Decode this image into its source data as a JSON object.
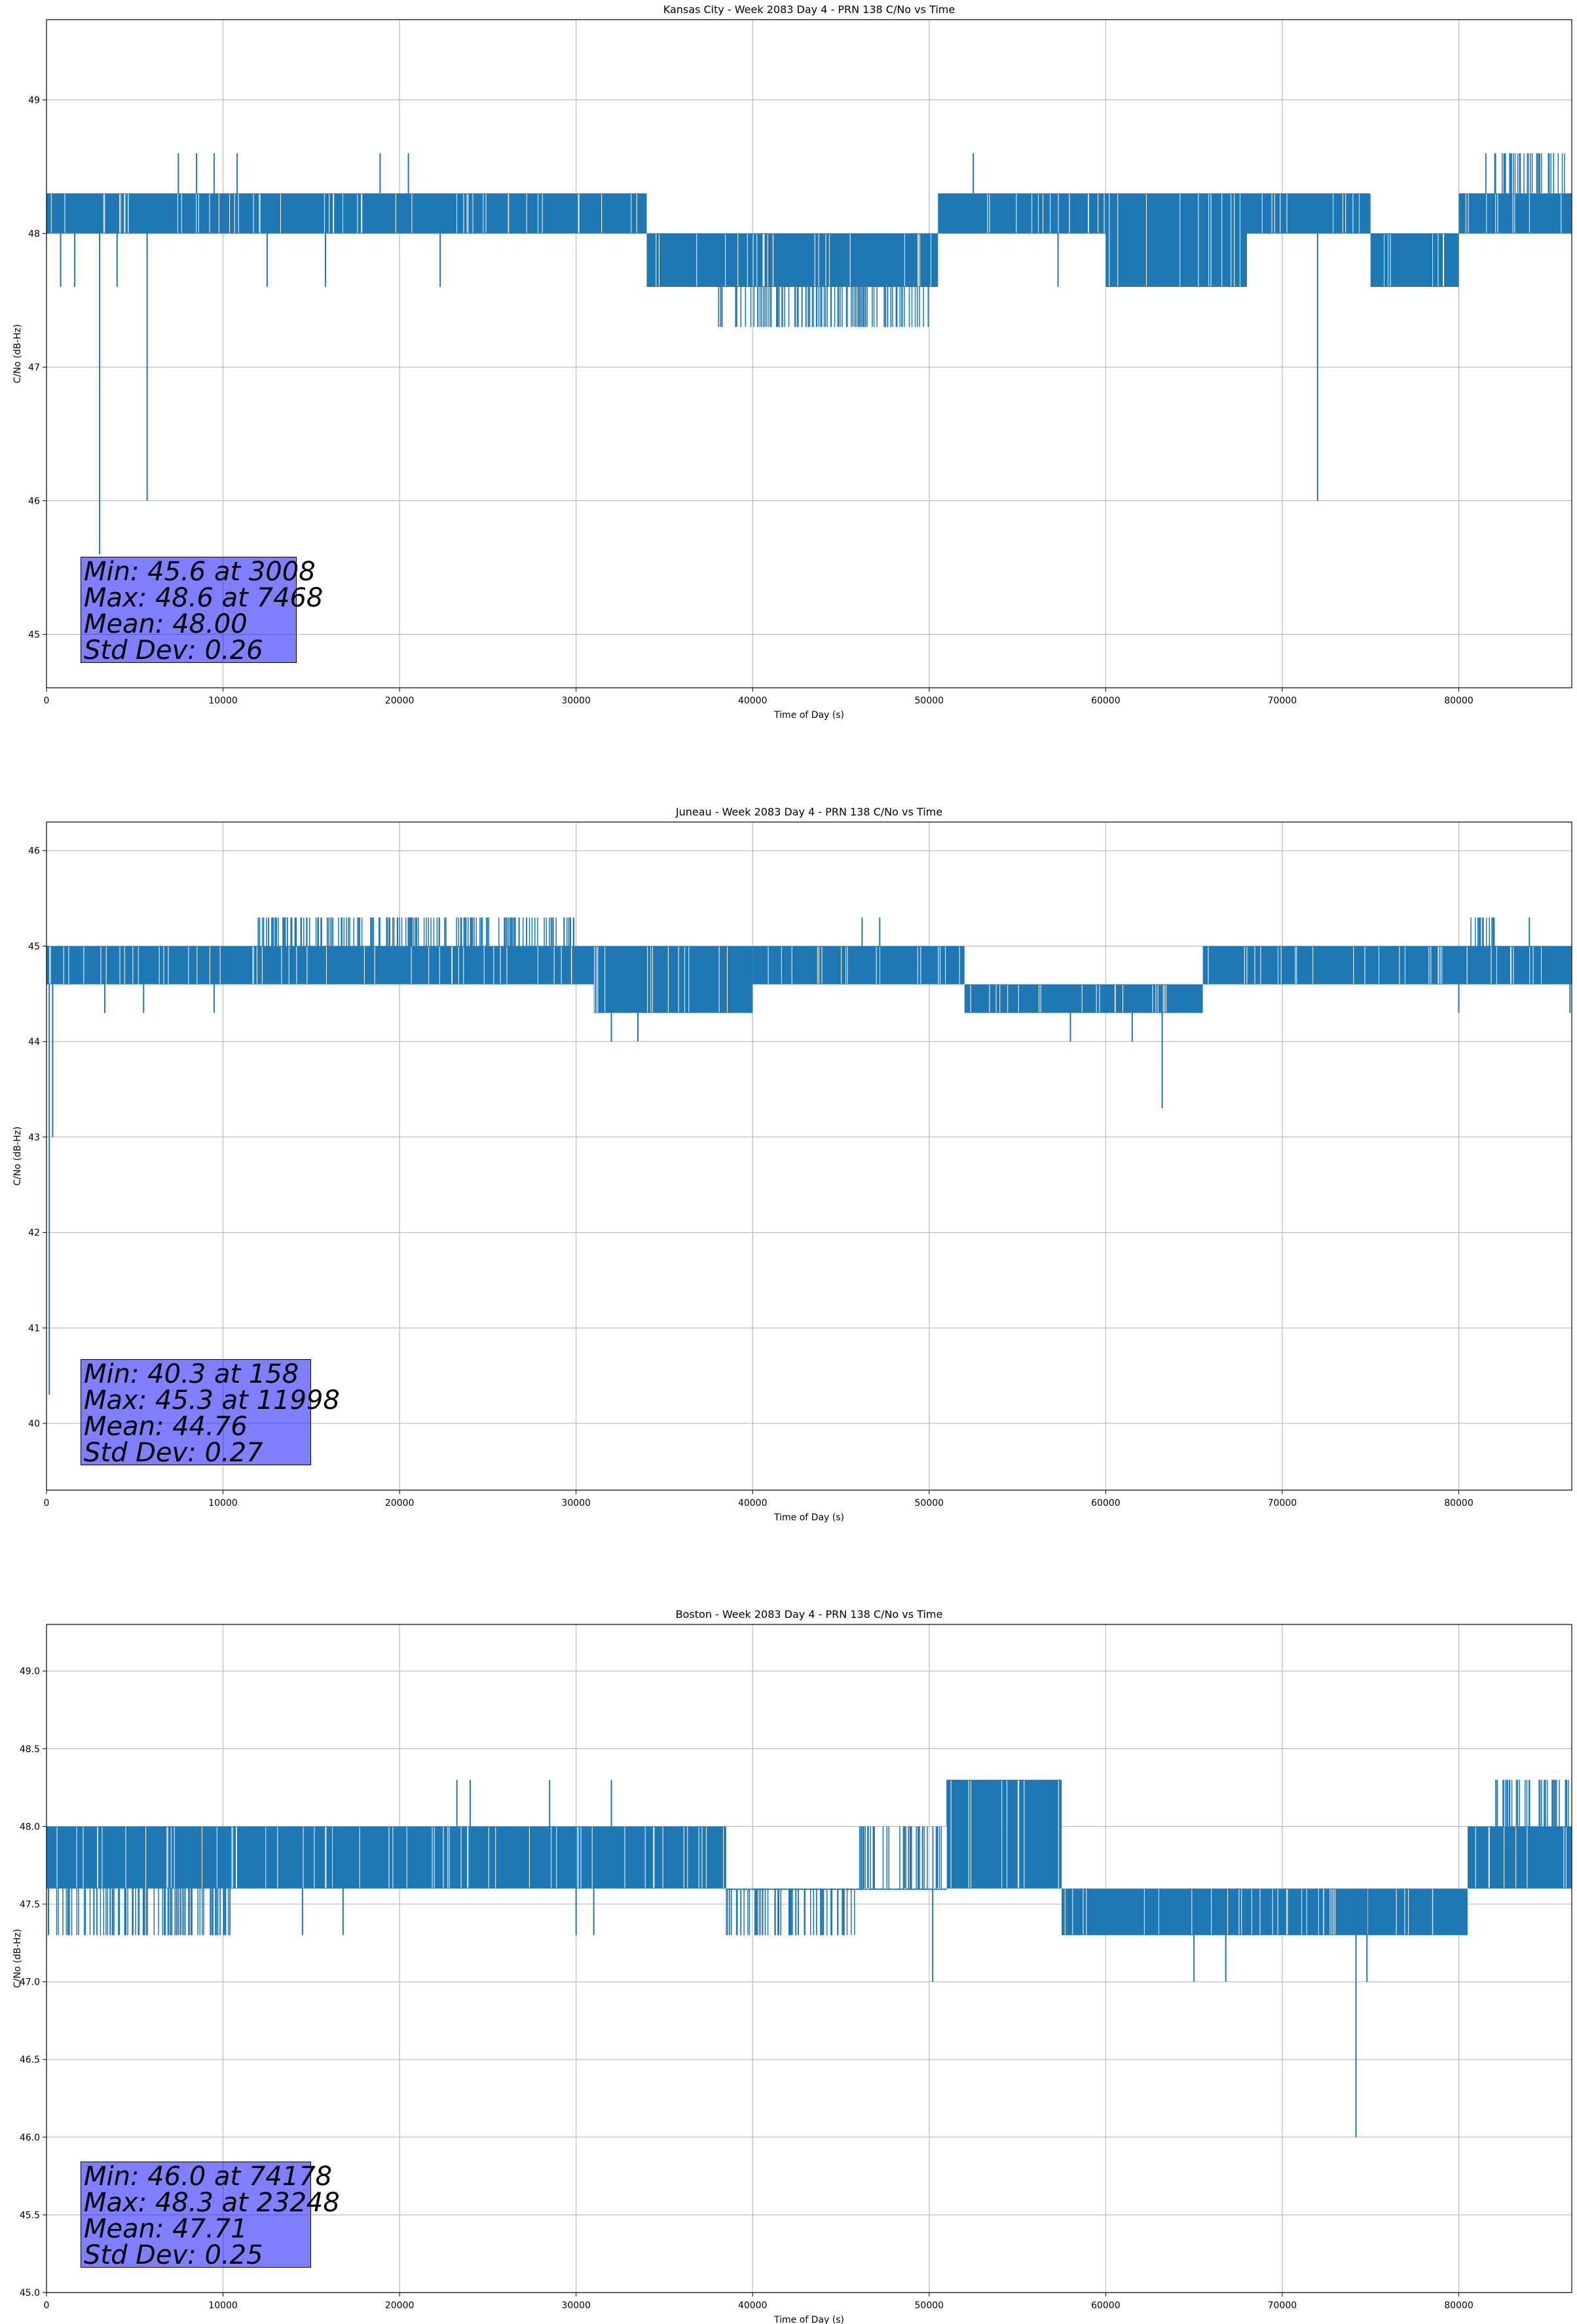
{
  "chart_data": [
    {
      "type": "line",
      "title": "Kansas City - Week 2083 Day 4 - PRN 138 C/No vs Time",
      "xlabel": "Time of Day (s)",
      "ylabel": "C/No (dB-Hz)",
      "xlim": [
        0,
        86400
      ],
      "ylim": [
        44.6,
        49.6
      ],
      "xticks": [
        0,
        10000,
        20000,
        30000,
        40000,
        50000,
        60000,
        70000,
        80000
      ],
      "xtick_labels": [
        "0",
        "10000",
        "20000",
        "30000",
        "40000",
        "50000",
        "60000",
        "70000",
        "80000"
      ],
      "yticks": [
        45,
        46,
        47,
        48,
        49
      ],
      "ytick_labels": [
        "45",
        "46",
        "47",
        "48",
        "49"
      ],
      "grid": true,
      "line_color": "#1f77b4",
      "bands": [
        {
          "x": [
            0,
            34000
          ],
          "low": 48.0,
          "high": 48.3
        },
        {
          "x": [
            34000,
            50500
          ],
          "low": 47.6,
          "high": 48.0
        },
        {
          "x": [
            50500,
            60000
          ],
          "low": 48.0,
          "high": 48.3
        },
        {
          "x": [
            60000,
            68000
          ],
          "low": 47.6,
          "high": 48.3
        },
        {
          "x": [
            68000,
            75000
          ],
          "low": 48.0,
          "high": 48.3
        },
        {
          "x": [
            75000,
            80000
          ],
          "low": 47.6,
          "high": 48.0
        },
        {
          "x": [
            80000,
            86400
          ],
          "low": 48.0,
          "high": 48.3
        }
      ],
      "extra_bands": [
        {
          "x": [
            38000,
            50000
          ],
          "low": 47.3,
          "high": 47.6
        },
        {
          "x": [
            81500,
            86000
          ],
          "low": 48.3,
          "high": 48.6
        }
      ],
      "spikes": [
        {
          "x": 3008,
          "y": 45.6
        },
        {
          "x": 5700,
          "y": 46.0
        },
        {
          "x": 72000,
          "y": 46.0
        },
        {
          "x": 7468,
          "y": 48.6
        },
        {
          "x": 8500,
          "y": 48.6
        },
        {
          "x": 9500,
          "y": 48.6
        },
        {
          "x": 10800,
          "y": 48.6
        },
        {
          "x": 18900,
          "y": 48.6
        },
        {
          "x": 20500,
          "y": 48.6
        },
        {
          "x": 52500,
          "y": 48.6
        },
        {
          "x": 800,
          "y": 47.6
        },
        {
          "x": 1600,
          "y": 47.6
        },
        {
          "x": 4000,
          "y": 47.6
        },
        {
          "x": 12500,
          "y": 47.6
        },
        {
          "x": 15800,
          "y": 47.6
        },
        {
          "x": 22300,
          "y": 47.6
        },
        {
          "x": 57300,
          "y": 47.6
        }
      ],
      "stats": {
        "min": "Min: 45.6 at 3008",
        "max": "Max: 48.6 at 7468",
        "mean": "Mean: 48.00",
        "std": "Std Dev: 0.26"
      }
    },
    {
      "type": "line",
      "title": "Juneau - Week 2083 Day 4 - PRN 138 C/No vs Time",
      "xlabel": "Time of Day (s)",
      "ylabel": "C/No (dB-Hz)",
      "xlim": [
        0,
        86400
      ],
      "ylim": [
        39.3,
        46.3
      ],
      "xticks": [
        0,
        10000,
        20000,
        30000,
        40000,
        50000,
        60000,
        70000,
        80000
      ],
      "xtick_labels": [
        "0",
        "10000",
        "20000",
        "30000",
        "40000",
        "50000",
        "60000",
        "70000",
        "80000"
      ],
      "yticks": [
        40,
        41,
        42,
        43,
        44,
        45,
        46
      ],
      "ytick_labels": [
        "40",
        "41",
        "42",
        "43",
        "44",
        "45",
        "46"
      ],
      "grid": true,
      "line_color": "#1f77b4",
      "bands": [
        {
          "x": [
            0,
            31000
          ],
          "low": 44.6,
          "high": 45.0
        },
        {
          "x": [
            31000,
            40000
          ],
          "low": 44.3,
          "high": 45.0
        },
        {
          "x": [
            40000,
            52000
          ],
          "low": 44.6,
          "high": 45.0
        },
        {
          "x": [
            52000,
            65500
          ],
          "low": 44.3,
          "high": 44.6
        },
        {
          "x": [
            65500,
            80500
          ],
          "low": 44.6,
          "high": 45.0
        },
        {
          "x": [
            80500,
            86400
          ],
          "low": 44.6,
          "high": 45.0
        }
      ],
      "extra_bands": [
        {
          "x": [
            12000,
            30000
          ],
          "low": 45.0,
          "high": 45.3
        },
        {
          "x": [
            80500,
            82000
          ],
          "low": 45.0,
          "high": 45.3
        }
      ],
      "spikes": [
        {
          "x": 158,
          "y": 40.3
        },
        {
          "x": 350,
          "y": 43.0
        },
        {
          "x": 63200,
          "y": 43.3
        },
        {
          "x": 11998,
          "y": 45.3
        },
        {
          "x": 46200,
          "y": 45.3
        },
        {
          "x": 47200,
          "y": 45.3
        },
        {
          "x": 82000,
          "y": 45.3
        },
        {
          "x": 84000,
          "y": 45.3
        },
        {
          "x": 3300,
          "y": 44.3
        },
        {
          "x": 5500,
          "y": 44.3
        },
        {
          "x": 9500,
          "y": 44.3
        },
        {
          "x": 32000,
          "y": 44.0
        },
        {
          "x": 33500,
          "y": 44.0
        },
        {
          "x": 58000,
          "y": 44.0
        },
        {
          "x": 61500,
          "y": 44.0
        },
        {
          "x": 80000,
          "y": 44.3
        },
        {
          "x": 86300,
          "y": 44.3
        }
      ],
      "stats": {
        "min": "Min: 40.3 at 158",
        "max": "Max: 45.3 at 11998",
        "mean": "Mean: 44.76",
        "std": "Std Dev: 0.27"
      }
    },
    {
      "type": "line",
      "title": "Boston - Week 2083 Day 4 - PRN 138 C/No vs Time",
      "xlabel": "Time of Day (s)",
      "ylabel": "C/No (dB-Hz)",
      "xlim": [
        0,
        86400
      ],
      "ylim": [
        45.0,
        49.3
      ],
      "xticks": [
        0,
        10000,
        20000,
        30000,
        40000,
        50000,
        60000,
        70000,
        80000
      ],
      "xtick_labels": [
        "0",
        "10000",
        "20000",
        "30000",
        "40000",
        "50000",
        "60000",
        "70000",
        "80000"
      ],
      "yticks": [
        45.0,
        45.5,
        46.0,
        46.5,
        47.0,
        47.5,
        48.0,
        48.5,
        49.0
      ],
      "ytick_labels": [
        "45.0",
        "45.5",
        "46.0",
        "46.5",
        "47.0",
        "47.5",
        "48.0",
        "48.5",
        "49.0"
      ],
      "grid": true,
      "line_color": "#1f77b4",
      "bands": [
        {
          "x": [
            0,
            38500
          ],
          "low": 47.6,
          "high": 48.0
        },
        {
          "x": [
            38500,
            51000
          ],
          "low": 47.6,
          "high": 47.6
        },
        {
          "x": [
            51000,
            57500
          ],
          "low": 47.6,
          "high": 48.3
        },
        {
          "x": [
            57500,
            80500
          ],
          "low": 47.3,
          "high": 47.6
        },
        {
          "x": [
            80500,
            86400
          ],
          "low": 47.6,
          "high": 48.0
        }
      ],
      "extra_bands": [
        {
          "x": [
            0,
            10500
          ],
          "low": 47.3,
          "high": 47.6
        },
        {
          "x": [
            38500,
            46000
          ],
          "low": 47.3,
          "high": 47.6
        },
        {
          "x": [
            46000,
            51000
          ],
          "low": 47.6,
          "high": 48.0
        },
        {
          "x": [
            51000,
            57500
          ],
          "low": 48.0,
          "high": 48.3
        },
        {
          "x": [
            82000,
            86400
          ],
          "low": 48.0,
          "high": 48.3
        }
      ],
      "spikes": [
        {
          "x": 74178,
          "y": 46.0
        },
        {
          "x": 50200,
          "y": 47.0
        },
        {
          "x": 65000,
          "y": 47.0
        },
        {
          "x": 66800,
          "y": 47.0
        },
        {
          "x": 74800,
          "y": 47.0
        },
        {
          "x": 23248,
          "y": 48.3
        },
        {
          "x": 24000,
          "y": 48.3
        },
        {
          "x": 28500,
          "y": 48.3
        },
        {
          "x": 32000,
          "y": 48.3
        },
        {
          "x": 86100,
          "y": 48.3
        },
        {
          "x": 14500,
          "y": 47.3
        },
        {
          "x": 16800,
          "y": 47.3
        },
        {
          "x": 30000,
          "y": 47.3
        },
        {
          "x": 31000,
          "y": 47.3
        },
        {
          "x": 59000,
          "y": 47.3
        },
        {
          "x": 61000,
          "y": 47.3
        }
      ],
      "stats": {
        "min": "Min: 46.0 at 74178",
        "max": "Max: 48.3 at 23248",
        "mean": "Mean: 47.71",
        "std": "Std Dev: 0.25"
      }
    }
  ]
}
